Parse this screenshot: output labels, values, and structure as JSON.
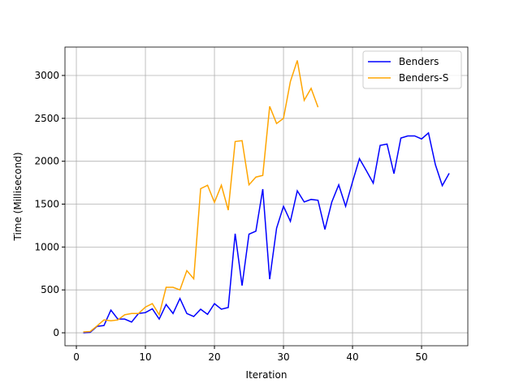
{
  "chart_data": {
    "type": "line",
    "xlabel": "Iteration",
    "ylabel": "Time (Millisecond)",
    "series": [
      {
        "name": "Benders",
        "color": "#0000ff",
        "x": [
          1,
          2,
          3,
          4,
          5,
          6,
          7,
          8,
          9,
          10,
          11,
          12,
          13,
          14,
          15,
          16,
          17,
          18,
          19,
          20,
          21,
          22,
          23,
          24,
          25,
          26,
          27,
          28,
          29,
          30,
          31,
          32,
          33,
          34,
          35,
          36,
          37,
          38,
          39,
          40,
          41,
          42,
          43,
          44,
          45,
          46,
          47,
          48,
          49,
          50,
          51,
          52,
          53,
          54
        ],
        "values": [
          0,
          5,
          75,
          85,
          265,
          160,
          160,
          125,
          225,
          235,
          280,
          160,
          330,
          225,
          400,
          225,
          190,
          275,
          215,
          340,
          275,
          295,
          1155,
          550,
          1150,
          1185,
          1675,
          625,
          1220,
          1475,
          1300,
          1655,
          1525,
          1555,
          1545,
          1205,
          1525,
          1725,
          1475,
          1760,
          2030,
          1890,
          1745,
          2185,
          2200,
          1855,
          2270,
          2295,
          2295,
          2260,
          2330,
          1960,
          1715,
          1860
        ]
      },
      {
        "name": "Benders-S",
        "color": "#ffa500",
        "x": [
          1,
          2,
          3,
          4,
          5,
          6,
          7,
          8,
          9,
          10,
          11,
          12,
          13,
          14,
          15,
          16,
          17,
          18,
          19,
          20,
          21,
          22,
          23,
          24,
          25,
          26,
          27,
          28,
          29,
          30,
          31,
          32,
          33,
          34,
          35
        ],
        "values": [
          10,
          15,
          80,
          150,
          140,
          150,
          210,
          225,
          225,
          300,
          340,
          210,
          530,
          530,
          500,
          725,
          630,
          1680,
          1720,
          1520,
          1720,
          1430,
          2230,
          2240,
          1725,
          1815,
          1835,
          2640,
          2440,
          2500,
          2930,
          3175,
          2710,
          2850,
          2630
        ]
      }
    ],
    "xlim": [
      -1.65,
      56.7
    ],
    "ylim": [
      -151,
      3331
    ],
    "xticks": [
      0,
      10,
      20,
      30,
      40,
      50
    ],
    "yticks": [
      0,
      500,
      1000,
      1500,
      2000,
      2500,
      3000
    ],
    "grid": true,
    "legend": "upper right"
  }
}
